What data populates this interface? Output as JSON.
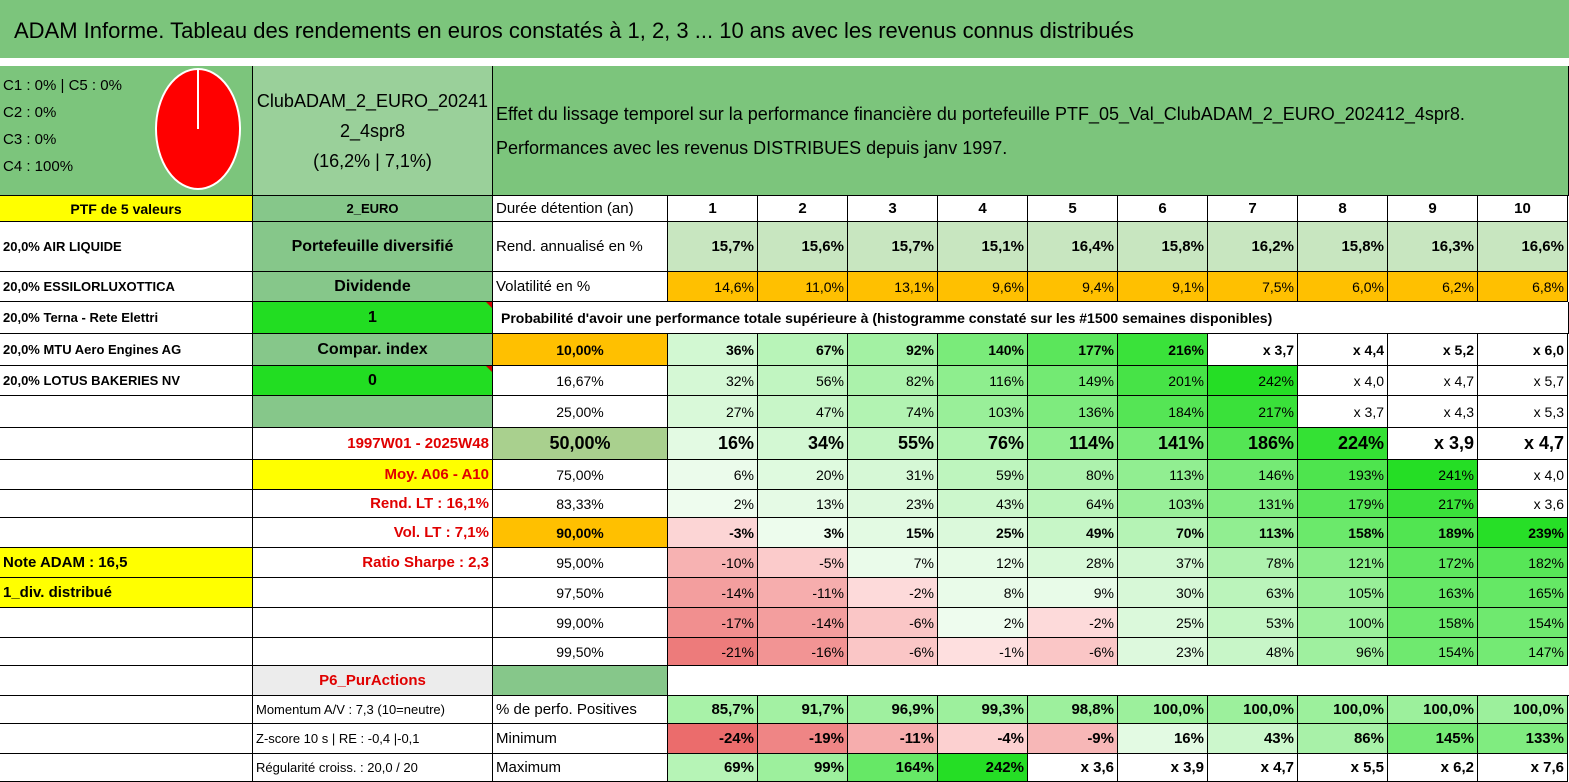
{
  "title": "ADAM Informe. Tableau des rendements en euros constatés à 1, 2, 3 ... 10 ans avec les revenus connus distribués",
  "colors": {
    "header_green": "#7cc57c",
    "mid_green": "#86c78a",
    "bright_green": "#22dd22",
    "yellow": "#ffff00",
    "orange": "#ffc000",
    "red_text": "#e00000",
    "pie_red": "#ff0000"
  },
  "allocation": {
    "lines": [
      "C1 : 0% | C5 : 0%",
      "C2 : 0%",
      "C3 : 0%",
      "C4 : 100%"
    ],
    "pie_icon": "pie-chart-icon",
    "pie_share_c4": 1.0
  },
  "portfolio": {
    "name_line1": "ClubADAM_2_EURO_20241",
    "name_line2": "2_4spr8",
    "name_line3": "(16,2% | 7,1%)",
    "description_line1": "Effet du lissage temporel sur la performance financière du portefeuille PTF_05_Val_ClubADAM_2_EURO_202412_4spr8.",
    "description_line2": "Performances avec les revenus DISTRIBUES depuis janv 1997.",
    "ptf_label": "PTF de 5 valeurs",
    "code": "2_EURO"
  },
  "holdings": [
    "20,0% AIR LIQUIDE",
    "20,0% ESSILORLUXOTTICA",
    "20,0% Terna - Rete Elettri",
    "20,0% MTU Aero Engines AG",
    "20,0% LOTUS BAKERIES NV"
  ],
  "side": {
    "diversified": "Portefeuille diversifié",
    "dividend": "Dividende",
    "value_one": "1",
    "compar_index": "Compar. index",
    "value_zero": "0",
    "period": "1997W01 - 2025W48",
    "moy": "Moy. A06 - A10",
    "rend_lt": "Rend. LT : 16,1%",
    "vol_lt": "Vol. LT : 7,1%",
    "sharpe": "Ratio Sharpe : 2,3",
    "note": "Note ADAM : 16,5",
    "div": "1_div. distribué",
    "p6": "P6_PurActions",
    "momentum": "Momentum A/V : 7,3 (10=neutre)",
    "zscore": "Z-score 10 s | RE : -0,4 |-0,1",
    "regularite": "Régularité croiss. : 20,0 / 20"
  },
  "table": {
    "duration_label": "Durée détention (an)",
    "years": [
      "1",
      "2",
      "3",
      "4",
      "5",
      "6",
      "7",
      "8",
      "9",
      "10"
    ],
    "rend_label": "Rend. annualisé en %",
    "rend": [
      "15,7%",
      "15,6%",
      "15,7%",
      "15,1%",
      "16,4%",
      "15,8%",
      "16,2%",
      "15,8%",
      "16,3%",
      "16,6%"
    ],
    "vol_label": "Volatilité en %",
    "vol": [
      "14,6%",
      "11,0%",
      "13,1%",
      "9,6%",
      "9,4%",
      "9,1%",
      "7,5%",
      "6,0%",
      "6,2%",
      "6,8%"
    ],
    "prob_label": "Probabilité d'avoir une performance totale supérieure à (histogramme constaté sur les #1500 semaines disponibles)",
    "prob_rows": [
      {
        "p": "10,00%",
        "v": [
          "36%",
          "67%",
          "92%",
          "140%",
          "177%",
          "216%",
          "x 3,7",
          "x 4,4",
          "x 5,2",
          "x 6,0"
        ]
      },
      {
        "p": "16,67%",
        "v": [
          "32%",
          "56%",
          "82%",
          "116%",
          "149%",
          "201%",
          "242%",
          "x 4,0",
          "x 4,7",
          "x 5,7"
        ]
      },
      {
        "p": "25,00%",
        "v": [
          "27%",
          "47%",
          "74%",
          "103%",
          "136%",
          "184%",
          "217%",
          "x 3,7",
          "x 4,3",
          "x 5,3"
        ]
      },
      {
        "p": "50,00%",
        "v": [
          "16%",
          "34%",
          "55%",
          "76%",
          "114%",
          "141%",
          "186%",
          "224%",
          "x 3,9",
          "x 4,7"
        ]
      },
      {
        "p": "75,00%",
        "v": [
          "6%",
          "20%",
          "31%",
          "59%",
          "80%",
          "113%",
          "146%",
          "193%",
          "241%",
          "x 4,0"
        ]
      },
      {
        "p": "83,33%",
        "v": [
          "2%",
          "13%",
          "23%",
          "43%",
          "64%",
          "103%",
          "131%",
          "179%",
          "217%",
          "x 3,6"
        ]
      },
      {
        "p": "90,00%",
        "v": [
          "-3%",
          "3%",
          "15%",
          "25%",
          "49%",
          "70%",
          "113%",
          "158%",
          "189%",
          "239%"
        ]
      },
      {
        "p": "95,00%",
        "v": [
          "-10%",
          "-5%",
          "7%",
          "12%",
          "28%",
          "37%",
          "78%",
          "121%",
          "172%",
          "182%"
        ]
      },
      {
        "p": "97,50%",
        "v": [
          "-14%",
          "-11%",
          "-2%",
          "8%",
          "9%",
          "30%",
          "63%",
          "105%",
          "163%",
          "165%"
        ]
      },
      {
        "p": "99,00%",
        "v": [
          "-17%",
          "-14%",
          "-6%",
          "2%",
          "-2%",
          "25%",
          "53%",
          "100%",
          "158%",
          "154%"
        ]
      },
      {
        "p": "99,50%",
        "v": [
          "-21%",
          "-16%",
          "-6%",
          "-1%",
          "-6%",
          "23%",
          "48%",
          "96%",
          "154%",
          "147%"
        ]
      }
    ],
    "pos_label": "% de perfo. Positives",
    "pos": [
      "85,7%",
      "91,7%",
      "96,9%",
      "99,3%",
      "98,8%",
      "100,0%",
      "100,0%",
      "100,0%",
      "100,0%",
      "100,0%"
    ],
    "min_label": "Minimum",
    "min": [
      "-24%",
      "-19%",
      "-11%",
      "-4%",
      "-9%",
      "16%",
      "43%",
      "86%",
      "145%",
      "133%"
    ],
    "max_label": "Maximum",
    "max": [
      "69%",
      "99%",
      "164%",
      "242%",
      "x 3,6",
      "x 3,9",
      "x 4,7",
      "x 5,5",
      "x 6,2",
      "x 7,6"
    ]
  }
}
